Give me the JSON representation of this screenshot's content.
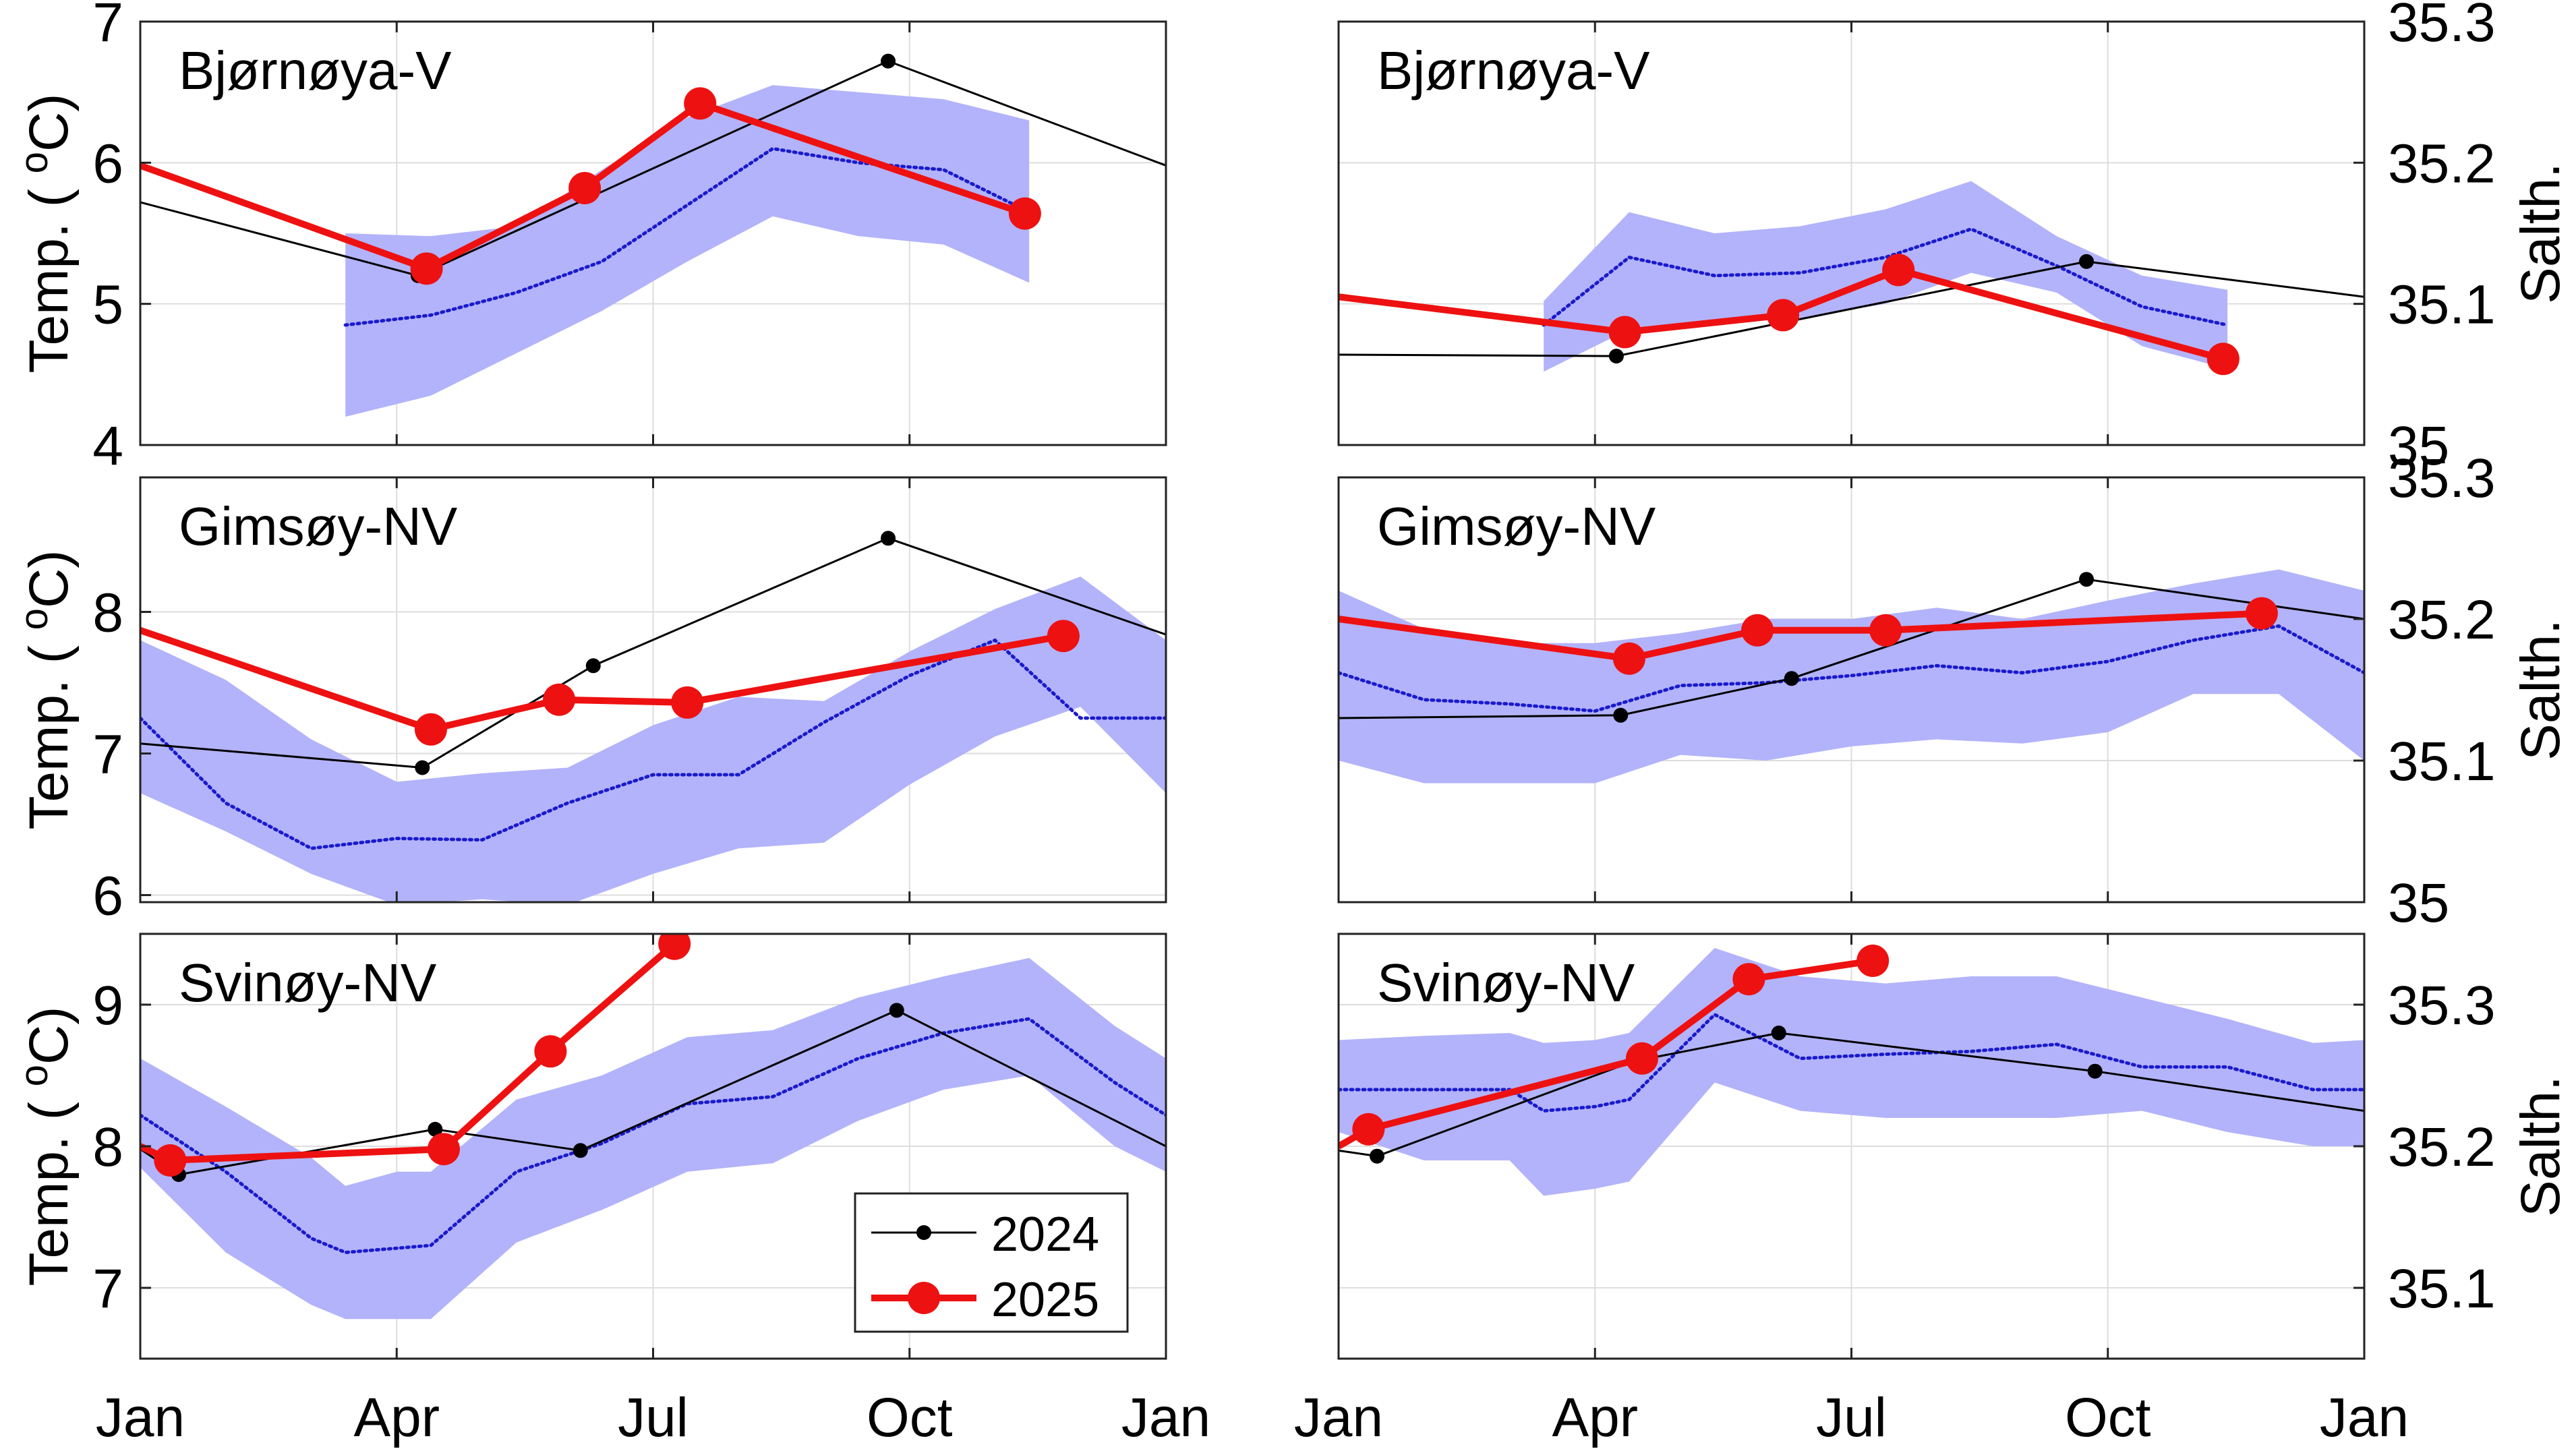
{
  "colors": {
    "band": "#b3b3fb",
    "mean_line": "#1a1acc",
    "y2024": "#000000",
    "y2025": "#ee1111",
    "grid": "#dddddd",
    "axes": "#222222"
  },
  "legend": {
    "label_2024": "2024",
    "label_2025": "2025",
    "location": "bottom-right of Svinøy-NV temperature panel"
  },
  "x_tick_labels": [
    "Jan",
    "Apr",
    "Jul",
    "Oct",
    "Jan"
  ],
  "chart_data": [
    {
      "id": "bjornoya-temp",
      "type": "line",
      "title": "Bjørnøya-V",
      "ylabel": "Temp. ( °C)",
      "ylabel_base": "Temp. (",
      "ylabel_sup": "o",
      "ylabel_unit": "C)",
      "ylim": [
        4,
        7
      ],
      "yticks": [
        4,
        5,
        6,
        7
      ],
      "ytick_labels": [
        "4",
        "5",
        "6",
        "7"
      ],
      "xlim": [
        0,
        12
      ],
      "x_tick_positions": [
        0,
        3,
        6,
        9,
        12
      ],
      "band": {
        "x": [
          2.4,
          3.4,
          4.4,
          5.4,
          6.4,
          7.4,
          8.4,
          9.4,
          10.4
        ],
        "lower": [
          4.2,
          4.35,
          4.65,
          4.95,
          5.3,
          5.62,
          5.48,
          5.42,
          5.15
        ],
        "upper": [
          5.5,
          5.48,
          5.55,
          5.95,
          6.32,
          6.55,
          6.5,
          6.45,
          6.3
        ]
      },
      "mean": {
        "x": [
          2.4,
          3.4,
          4.4,
          5.4,
          6.4,
          7.4,
          8.4,
          9.4,
          10.4
        ],
        "y": [
          4.85,
          4.92,
          5.08,
          5.3,
          5.7,
          6.1,
          6.0,
          5.95,
          5.65
        ]
      },
      "series": [
        {
          "name": "2024",
          "x": [
            0,
            3.25,
            8.75,
            12
          ],
          "y": [
            5.72,
            5.2,
            6.72,
            5.98
          ]
        },
        {
          "name": "2025",
          "x": [
            0,
            3.35,
            5.2,
            6.55,
            10.35
          ],
          "y": [
            5.98,
            5.25,
            5.82,
            6.42,
            5.64
          ]
        }
      ]
    },
    {
      "id": "bjornoya-salt",
      "type": "line",
      "title": "Bjørnøya-V",
      "ylabel": "Salth.",
      "ylim": [
        35.0,
        35.3
      ],
      "yticks": [
        35.0,
        35.1,
        35.2,
        35.3
      ],
      "ytick_labels": [
        "35",
        "35.1",
        "35.2",
        "35.3"
      ],
      "xlim": [
        0,
        12
      ],
      "x_tick_positions": [
        0,
        3,
        6,
        9,
        12
      ],
      "band": {
        "x": [
          2.4,
          3.4,
          4.4,
          5.4,
          6.4,
          7.4,
          8.4,
          9.4,
          10.4
        ],
        "lower": [
          35.052,
          35.082,
          35.088,
          35.09,
          35.1,
          35.122,
          35.108,
          35.07,
          35.054
        ],
        "upper": [
          35.102,
          35.165,
          35.15,
          35.155,
          35.167,
          35.187,
          35.148,
          35.12,
          35.11
        ]
      },
      "mean": {
        "x": [
          2.4,
          3.4,
          4.4,
          5.4,
          6.4,
          7.4,
          8.4,
          9.4,
          10.4
        ],
        "y": [
          35.085,
          35.133,
          35.12,
          35.122,
          35.133,
          35.153,
          35.127,
          35.098,
          35.085
        ]
      },
      "series": [
        {
          "name": "2024",
          "x": [
            0,
            3.25,
            8.75,
            12
          ],
          "y": [
            35.064,
            35.063,
            35.13,
            35.105
          ]
        },
        {
          "name": "2025",
          "x": [
            0,
            3.35,
            5.2,
            6.55,
            10.35
          ],
          "y": [
            35.105,
            35.08,
            35.092,
            35.124,
            35.061
          ]
        }
      ]
    },
    {
      "id": "gimsoy-temp",
      "type": "line",
      "title": "Gimsøy-NV",
      "ylabel": "Temp. ( °C)",
      "ylabel_base": "Temp. (",
      "ylabel_sup": "o",
      "ylabel_unit": "C)",
      "ylim": [
        5.95,
        8.95
      ],
      "yticks": [
        6,
        7,
        8
      ],
      "ytick_labels": [
        "6",
        "7",
        "8"
      ],
      "xlim": [
        0,
        12
      ],
      "x_tick_positions": [
        0,
        3,
        6,
        9,
        12
      ],
      "band": {
        "x": [
          0,
          1,
          2,
          3,
          4,
          5,
          6,
          7,
          8,
          9,
          10,
          11,
          12
        ],
        "lower": [
          6.72,
          6.45,
          6.15,
          5.93,
          5.97,
          5.93,
          6.15,
          6.33,
          6.37,
          6.78,
          7.12,
          7.33,
          6.72
        ],
        "upper": [
          7.8,
          7.52,
          7.1,
          6.8,
          6.86,
          6.9,
          7.2,
          7.4,
          7.37,
          7.72,
          8.02,
          8.25,
          7.8
        ]
      },
      "mean": {
        "x": [
          0,
          1,
          2,
          3,
          4,
          5,
          6,
          7,
          8,
          9,
          10,
          11,
          12
        ],
        "y": [
          7.25,
          6.65,
          6.33,
          6.4,
          6.39,
          6.65,
          6.85,
          6.85,
          7.22,
          7.55,
          7.8,
          7.25,
          7.25
        ]
      },
      "series": [
        {
          "name": "2024",
          "x": [
            0,
            3.3,
            5.3,
            8.75,
            12
          ],
          "y": [
            7.07,
            6.9,
            7.62,
            8.52,
            7.84
          ]
        },
        {
          "name": "2025",
          "x": [
            0,
            3.4,
            4.9,
            6.4,
            10.8
          ],
          "y": [
            7.87,
            7.17,
            7.38,
            7.36,
            7.83
          ]
        }
      ]
    },
    {
      "id": "gimsoy-salt",
      "type": "line",
      "title": "Gimsøy-NV",
      "ylabel": "Salth.",
      "ylim": [
        35.0,
        35.3
      ],
      "yticks": [
        35.0,
        35.1,
        35.2,
        35.3
      ],
      "ytick_labels": [
        "35",
        "35.1",
        "35.2",
        "35.3"
      ],
      "xlim": [
        0,
        12
      ],
      "x_tick_positions": [
        0,
        3,
        6,
        9,
        12
      ],
      "band": {
        "x": [
          0,
          1,
          2,
          3,
          4,
          5,
          6,
          7,
          8,
          9,
          10,
          11,
          12
        ],
        "lower": [
          35.1,
          35.084,
          35.084,
          35.084,
          35.104,
          35.1,
          35.11,
          35.115,
          35.112,
          35.12,
          35.147,
          35.147,
          35.1
        ],
        "upper": [
          35.22,
          35.193,
          35.183,
          35.183,
          35.19,
          35.2,
          35.2,
          35.208,
          35.2,
          35.213,
          35.225,
          35.235,
          35.22
        ]
      },
      "mean": {
        "x": [
          0,
          1,
          2,
          3,
          4,
          5,
          6,
          7,
          8,
          9,
          10,
          11,
          12
        ],
        "y": [
          35.162,
          35.143,
          35.14,
          35.135,
          35.153,
          35.155,
          35.16,
          35.167,
          35.162,
          35.17,
          35.185,
          35.195,
          35.162
        ]
      },
      "series": [
        {
          "name": "2024",
          "x": [
            0,
            3.3,
            5.3,
            8.75,
            12
          ],
          "y": [
            35.13,
            35.132,
            35.158,
            35.228,
            35.2
          ]
        },
        {
          "name": "2025",
          "x": [
            0,
            3.4,
            4.9,
            6.4,
            10.8
          ],
          "y": [
            35.2,
            35.172,
            35.192,
            35.192,
            35.204
          ]
        }
      ]
    },
    {
      "id": "svinoy-temp",
      "type": "line",
      "title": "Svinøy-NV",
      "ylabel": "Temp. ( °C)",
      "ylabel_base": "Temp. (",
      "ylabel_sup": "o",
      "ylabel_unit": "C)",
      "ylim": [
        6.5,
        9.5
      ],
      "yticks": [
        7,
        8,
        9
      ],
      "ytick_labels": [
        "7",
        "8",
        "9"
      ],
      "xlim": [
        0,
        12
      ],
      "x_tick_positions": [
        0,
        3,
        6,
        9,
        12
      ],
      "band": {
        "x": [
          0,
          1,
          2,
          2.4,
          3,
          3.4,
          4.4,
          5.4,
          6.4,
          7.4,
          8.4,
          9.4,
          10.4,
          11.4,
          12
        ],
        "lower": [
          7.85,
          7.25,
          6.88,
          6.78,
          6.78,
          6.78,
          7.32,
          7.55,
          7.82,
          7.88,
          8.18,
          8.4,
          8.5,
          8.0,
          7.82
        ],
        "upper": [
          8.62,
          8.28,
          7.92,
          7.72,
          7.82,
          7.82,
          8.33,
          8.5,
          8.77,
          8.82,
          9.05,
          9.2,
          9.33,
          8.85,
          8.62
        ]
      },
      "mean": {
        "x": [
          0,
          1,
          2,
          2.4,
          3,
          3.4,
          4.4,
          5.4,
          6.4,
          7.4,
          8.4,
          9.4,
          10.4,
          11.4,
          12
        ],
        "y": [
          8.22,
          7.82,
          7.35,
          7.25,
          7.28,
          7.3,
          7.82,
          8.02,
          8.3,
          8.35,
          8.62,
          8.8,
          8.9,
          8.45,
          8.22
        ]
      },
      "series": [
        {
          "name": "2024",
          "x": [
            0,
            0.45,
            3.45,
            5.15,
            8.85,
            12
          ],
          "y": [
            7.98,
            7.8,
            8.12,
            7.97,
            8.96,
            8.0
          ]
        },
        {
          "name": "2025",
          "x": [
            0,
            0.35,
            3.55,
            4.8,
            6.25
          ],
          "y": [
            8.0,
            7.9,
            7.98,
            8.67,
            9.43
          ]
        }
      ]
    },
    {
      "id": "svinoy-salt",
      "type": "line",
      "title": "Svinøy-NV",
      "ylabel": "Salth.",
      "ylim": [
        35.05,
        35.35
      ],
      "yticks": [
        35.1,
        35.2,
        35.3
      ],
      "ytick_labels": [
        "35.1",
        "35.2",
        "35.3"
      ],
      "xlim": [
        0,
        12
      ],
      "x_tick_positions": [
        0,
        3,
        6,
        9,
        12
      ],
      "band": {
        "x": [
          0,
          1,
          2,
          2.4,
          3,
          3.4,
          4.4,
          5.4,
          6.4,
          7.4,
          8.4,
          9.4,
          10.4,
          11.4,
          12
        ],
        "lower": [
          35.21,
          35.19,
          35.19,
          35.165,
          35.17,
          35.175,
          35.245,
          35.225,
          35.22,
          35.22,
          35.22,
          35.225,
          35.21,
          35.2,
          35.2
        ],
        "upper": [
          35.275,
          35.278,
          35.28,
          35.273,
          35.275,
          35.28,
          35.34,
          35.32,
          35.315,
          35.32,
          35.32,
          35.305,
          35.29,
          35.273,
          35.275
        ]
      },
      "mean": {
        "x": [
          0,
          1,
          2,
          2.4,
          3,
          3.4,
          4.4,
          5.4,
          6.4,
          7.4,
          8.4,
          9.4,
          10.4,
          11.4,
          12
        ],
        "y": [
          35.24,
          35.24,
          35.24,
          35.225,
          35.228,
          35.233,
          35.293,
          35.262,
          35.265,
          35.267,
          35.272,
          35.256,
          35.256,
          35.24,
          35.24
        ]
      },
      "series": [
        {
          "name": "2024",
          "x": [
            0,
            0.45,
            3.45,
            5.15,
            8.85,
            12
          ],
          "y": [
            35.197,
            35.193,
            35.26,
            35.28,
            35.253,
            35.225
          ]
        },
        {
          "name": "2025",
          "x": [
            0,
            0.35,
            3.55,
            4.8,
            6.25
          ],
          "y": [
            35.2,
            35.212,
            35.262,
            35.318,
            35.331
          ]
        }
      ]
    }
  ]
}
